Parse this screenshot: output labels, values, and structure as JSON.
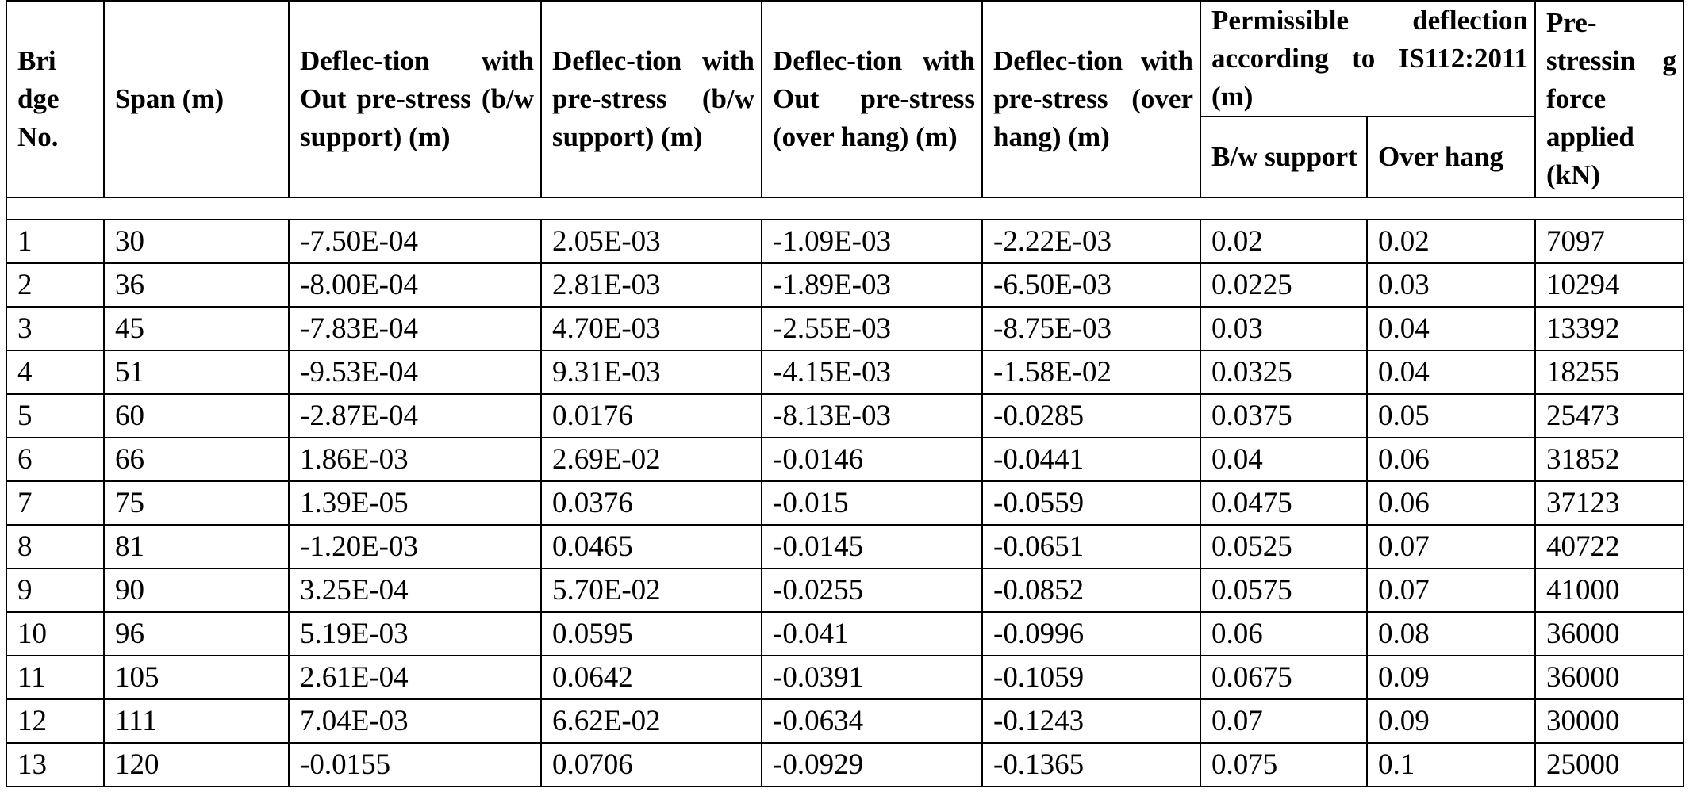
{
  "table": {
    "headers": {
      "bridge_no": "Bri dge No.",
      "span": "Span (m)",
      "defl_wo_ps_bw": "Deflec-tion with Out pre-stress (b/w support) (m)",
      "defl_w_ps_bw": "Deflec-tion with pre-stress (b/w support) (m)",
      "defl_wo_ps_oh": "Deflec-tion with Out pre-stress (over hang) (m)",
      "defl_w_ps_oh": "Deflec-tion with pre-stress (over hang) (m)",
      "permissible": "Permissible deflection according to IS112:2011 (m)",
      "perm_bw": "B/w support",
      "perm_oh": "Over hang",
      "prestress_force": "Pre-stressin g force applied (kN)"
    },
    "rows": [
      [
        "1",
        "30",
        "-7.50E-04",
        "2.05E-03",
        "-1.09E-03",
        "-2.22E-03",
        "0.02",
        "0.02",
        "7097"
      ],
      [
        "2",
        "36",
        "-8.00E-04",
        "2.81E-03",
        "-1.89E-03",
        "-6.50E-03",
        "0.0225",
        "0.03",
        "10294"
      ],
      [
        "3",
        "45",
        "-7.83E-04",
        "4.70E-03",
        "-2.55E-03",
        "-8.75E-03",
        "0.03",
        "0.04",
        "13392"
      ],
      [
        "4",
        "51",
        "-9.53E-04",
        "9.31E-03",
        "-4.15E-03",
        "-1.58E-02",
        "0.0325",
        "0.04",
        "18255"
      ],
      [
        "5",
        "60",
        "-2.87E-04",
        "0.0176",
        "-8.13E-03",
        "-0.0285",
        "0.0375",
        "0.05",
        "25473"
      ],
      [
        "6",
        "66",
        "1.86E-03",
        "2.69E-02",
        "-0.0146",
        "-0.0441",
        "0.04",
        "0.06",
        "31852"
      ],
      [
        "7",
        "75",
        "1.39E-05",
        "0.0376",
        "-0.015",
        "-0.0559",
        "0.0475",
        "0.06",
        "37123"
      ],
      [
        "8",
        "81",
        "-1.20E-03",
        "0.0465",
        "-0.0145",
        "-0.0651",
        "0.0525",
        "0.07",
        "40722"
      ],
      [
        "9",
        "90",
        "3.25E-04",
        "5.70E-02",
        "-0.0255",
        "-0.0852",
        "0.0575",
        "0.07",
        "41000"
      ],
      [
        "10",
        "96",
        "5.19E-03",
        "0.0595",
        "-0.041",
        "-0.0996",
        "0.06",
        "0.08",
        "36000"
      ],
      [
        "11",
        "105",
        "2.61E-04",
        "0.0642",
        "-0.0391",
        "-0.1059",
        "0.0675",
        "0.09",
        "36000"
      ],
      [
        "12",
        "111",
        "7.04E-03",
        "6.62E-02",
        "-0.0634",
        "-0.1243",
        "0.07",
        "0.09",
        "30000"
      ],
      [
        "13",
        "120",
        "-0.0155",
        "0.0706",
        "-0.0929",
        "-0.1365",
        "0.075",
        "0.1",
        "25000"
      ]
    ]
  }
}
